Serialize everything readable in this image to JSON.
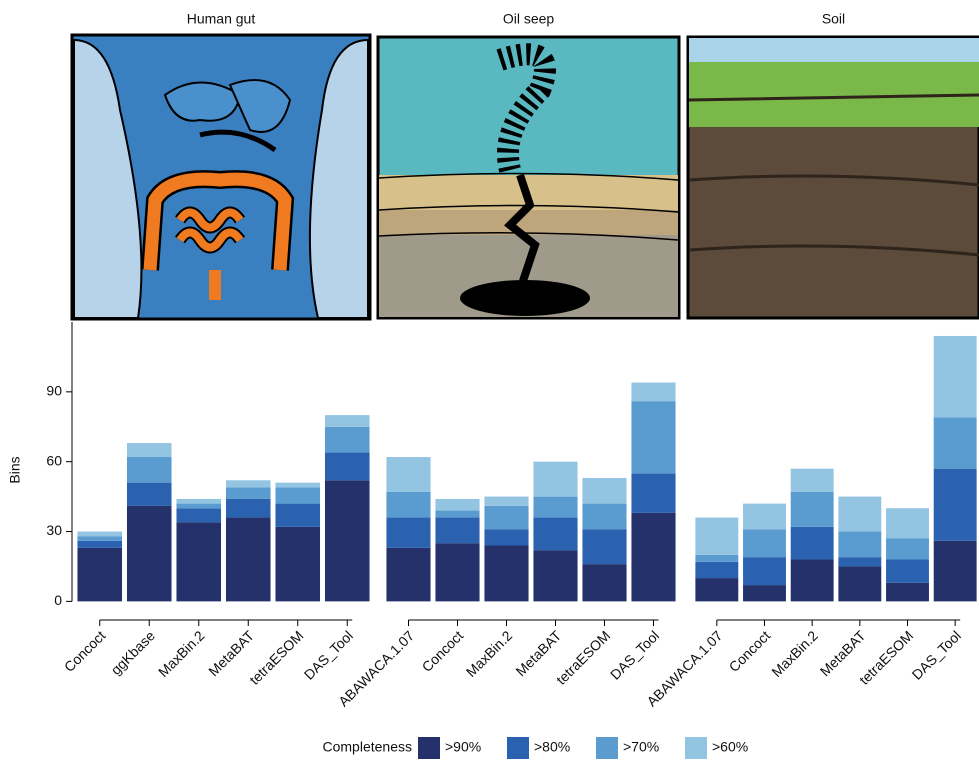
{
  "chart_data": {
    "type": "bar",
    "stacked": true,
    "ylabel": "Bins",
    "ylim": [
      -8,
      120
    ],
    "yticks": [
      0,
      30,
      60,
      90
    ],
    "legend": {
      "title": "Completeness",
      "entries": [
        {
          "name": ">90%",
          "color": "#25316b"
        },
        {
          "name": ">80%",
          "color": "#2b62b0"
        },
        {
          "name": ">70%",
          "color": "#5a9bd0"
        },
        {
          "name": ">60%",
          "color": "#93c4e2"
        }
      ]
    },
    "panels": [
      {
        "title": "Human gut",
        "categories": [
          "Concoct",
          "ggKbase",
          "MaxBin.2",
          "MetaBAT",
          "tetraESOM",
          "DAS_Tool"
        ],
        "series": [
          {
            "values": [
              23,
              41,
              34,
              36,
              32,
              52
            ]
          },
          {
            "values": [
              3,
              10,
              6,
              8,
              10,
              12
            ]
          },
          {
            "values": [
              2,
              11,
              2,
              5,
              7,
              11
            ]
          },
          {
            "values": [
              2,
              6,
              2,
              3,
              2,
              5
            ]
          }
        ]
      },
      {
        "title": "Oil seep",
        "categories": [
          "ABAWACA.1.07",
          "Concoct",
          "MaxBin.2",
          "MetaBAT",
          "tetraESOM",
          "DAS_Tool"
        ],
        "series": [
          {
            "values": [
              23,
              25,
              24,
              22,
              16,
              38
            ]
          },
          {
            "values": [
              13,
              11,
              7,
              14,
              15,
              17
            ]
          },
          {
            "values": [
              11,
              3,
              10,
              9,
              11,
              31
            ]
          },
          {
            "values": [
              15,
              5,
              4,
              15,
              11,
              8
            ]
          }
        ]
      },
      {
        "title": "Soil",
        "categories": [
          "ABAWACA.1.07",
          "Concoct",
          "MaxBin.2",
          "MetaBAT",
          "tetraESOM",
          "DAS_Tool"
        ],
        "series": [
          {
            "values": [
              10,
              7,
              18,
              15,
              8,
              26
            ]
          },
          {
            "values": [
              7,
              12,
              14,
              4,
              10,
              31
            ]
          },
          {
            "values": [
              3,
              12,
              15,
              11,
              9,
              22
            ]
          },
          {
            "values": [
              16,
              11,
              10,
              15,
              13,
              35
            ]
          }
        ]
      }
    ]
  }
}
